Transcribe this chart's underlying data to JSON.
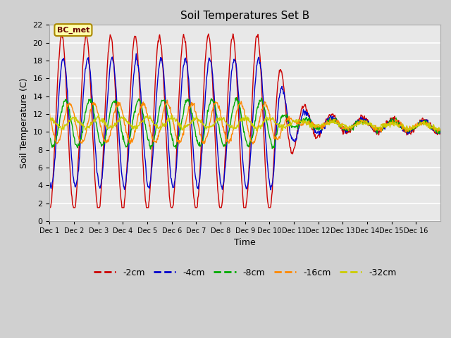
{
  "title": "Soil Temperatures Set B",
  "xlabel": "Time",
  "ylabel": "Soil Temperature (C)",
  "ylim": [
    0,
    22
  ],
  "yticks": [
    0,
    2,
    4,
    6,
    8,
    10,
    12,
    14,
    16,
    18,
    20,
    22
  ],
  "annotation_text": "BC_met",
  "series_colors": {
    "-2cm": "#cc0000",
    "-4cm": "#0000cc",
    "-8cm": "#00aa00",
    "-16cm": "#ff8800",
    "-32cm": "#cccc00"
  },
  "xtick_labels": [
    "Dec 1",
    "Dec 2",
    "Dec 3",
    "Dec 4",
    "Dec 5",
    "Dec 6",
    "Dec 7",
    "Dec 8",
    "Dec 9",
    "Dec 10",
    "Dec 11",
    "Dec 12",
    "Dec 13",
    "Dec 14",
    "Dec 15",
    "Dec 16"
  ],
  "n_days": 16,
  "pts_per_day": 48
}
